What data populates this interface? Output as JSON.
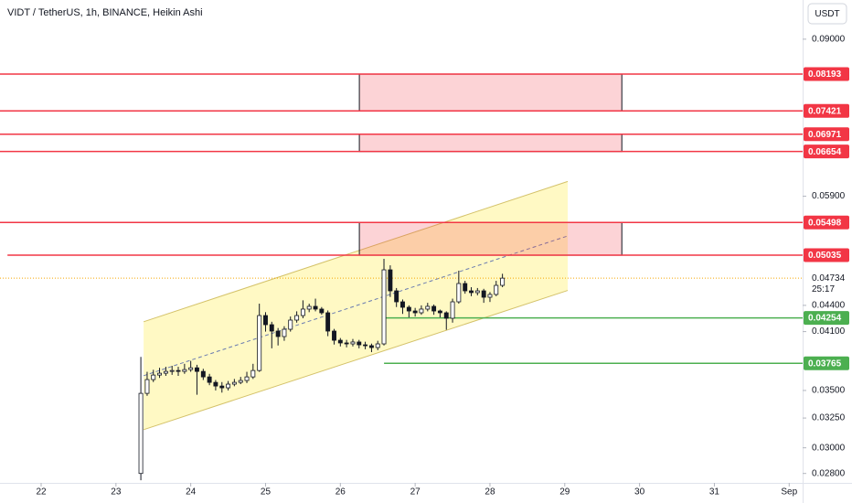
{
  "chart_data": {
    "type": "candlestick",
    "title": "VIDT / TetherUS, 1h, BINANCE, Heikin Ashi",
    "currency": "USDT",
    "countdown": "25:17",
    "log_scale": true,
    "grid": false,
    "up_color": "#ffffff",
    "down_color": "#131722",
    "wick_color": "#131722",
    "xlim": [
      21.45,
      32.18
    ],
    "xticks": [
      22,
      23,
      24,
      25,
      26,
      27,
      28,
      29,
      30,
      31,
      {
        "value": 32,
        "label": "Sep"
      }
    ],
    "ylim": [
      0.0273,
      0.1
    ],
    "yticks": [
      {
        "value": 0.09,
        "label": "0.09000"
      },
      {
        "value": 0.059,
        "label": "0.05900"
      },
      {
        "value": 0.044,
        "label": "0.04400"
      },
      {
        "value": 0.041,
        "label": "0.04100"
      },
      {
        "value": 0.035,
        "label": "0.03500"
      },
      {
        "value": 0.0325,
        "label": "0.03250"
      },
      {
        "value": 0.03,
        "label": "0.03000"
      },
      {
        "value": 0.028,
        "label": "0.02800"
      }
    ],
    "x": [
      23.333,
      23.417,
      23.5,
      23.583,
      23.667,
      23.75,
      23.833,
      23.917,
      24,
      24.083,
      24.167,
      24.25,
      24.333,
      24.417,
      24.5,
      24.583,
      24.667,
      24.75,
      24.833,
      24.917,
      25,
      25.083,
      25.167,
      25.25,
      25.333,
      25.417,
      25.5,
      25.583,
      25.667,
      25.75,
      25.833,
      25.917,
      26,
      26.083,
      26.167,
      26.25,
      26.333,
      26.417,
      26.5,
      26.583,
      26.667,
      26.75,
      26.833,
      26.917,
      27,
      27.083,
      27.167,
      27.25,
      27.333,
      27.417,
      27.5,
      27.583,
      27.667,
      27.75,
      27.833,
      27.917,
      28,
      28.083,
      28.167
    ],
    "open": [
      0.028,
      0.03473,
      0.03604,
      0.03648,
      0.03666,
      0.03684,
      0.03693,
      0.03684,
      0.03702,
      0.0372,
      0.03684,
      0.0363,
      0.03577,
      0.03542,
      0.03525,
      0.0356,
      0.03577,
      0.03595,
      0.0363,
      0.03693,
      0.04281,
      0.04177,
      0.04106,
      0.04046,
      0.04126,
      0.04229,
      0.04281,
      0.04356,
      0.04388,
      0.04356,
      0.04313,
      0.04106,
      0.04006,
      0.03977,
      0.03967,
      0.03987,
      0.03957,
      0.03948,
      0.03928,
      0.03967,
      0.04841,
      0.04575,
      0.04442,
      0.04377,
      0.04334,
      0.04313,
      0.04356,
      0.04388,
      0.04334,
      0.04313,
      0.0425,
      0.04442,
      0.04666,
      0.04575,
      0.04553,
      0.04575,
      0.04497,
      0.04531,
      0.04643
    ],
    "high": [
      0.0383,
      0.0368,
      0.037,
      0.0372,
      0.0373,
      0.0374,
      0.0373,
      0.0376,
      0.0379,
      0.0375,
      0.0371,
      0.0366,
      0.036,
      0.0358,
      0.0359,
      0.0361,
      0.0363,
      0.0368,
      0.0376,
      0.0442,
      0.0432,
      0.0421,
      0.0414,
      0.0416,
      0.0427,
      0.0433,
      0.0446,
      0.0442,
      0.0448,
      0.0438,
      0.0434,
      0.0413,
      0.0403,
      0.0401,
      0.0402,
      0.0401,
      0.0399,
      0.0397,
      0.04,
      0.04986,
      0.049,
      0.0461,
      0.0447,
      0.044,
      0.0437,
      0.044,
      0.0443,
      0.0441,
      0.0435,
      0.0433,
      0.0448,
      0.0483,
      0.047,
      0.0462,
      0.0461,
      0.046,
      0.0456,
      0.047,
      0.0479
    ],
    "low": [
      0.02749,
      0.0345,
      0.0358,
      0.0362,
      0.0364,
      0.0365,
      0.0364,
      0.0366,
      0.0368,
      0.0346,
      0.036,
      0.0355,
      0.035,
      0.0348,
      0.035,
      0.0354,
      0.0356,
      0.0357,
      0.0361,
      0.0368,
      0.041,
      0.0392,
      0.0395,
      0.04,
      0.041,
      0.042,
      0.0425,
      0.0432,
      0.0433,
      0.0429,
      0.0405,
      0.0396,
      0.0394,
      0.0393,
      0.0394,
      0.0392,
      0.0391,
      0.0388,
      0.039,
      0.0395,
      0.045,
      0.0438,
      0.043,
      0.0426,
      0.0427,
      0.0429,
      0.0433,
      0.0429,
      0.0426,
      0.0412,
      0.042,
      0.0442,
      0.0454,
      0.0451,
      0.0452,
      0.0443,
      0.0444,
      0.0451,
      0.0462
    ],
    "close": [
      0.03473,
      0.03604,
      0.03648,
      0.03666,
      0.03684,
      0.03693,
      0.03684,
      0.03702,
      0.0372,
      0.03684,
      0.0363,
      0.03577,
      0.03542,
      0.03525,
      0.0356,
      0.03577,
      0.03595,
      0.0363,
      0.03693,
      0.04281,
      0.04177,
      0.04106,
      0.04046,
      0.04126,
      0.04229,
      0.04281,
      0.04356,
      0.04388,
      0.04356,
      0.04313,
      0.04106,
      0.04006,
      0.03977,
      0.03967,
      0.03987,
      0.03957,
      0.03948,
      0.03928,
      0.03967,
      0.04841,
      0.04575,
      0.04442,
      0.04377,
      0.04334,
      0.04313,
      0.04356,
      0.04388,
      0.04334,
      0.04313,
      0.0425,
      0.04442,
      0.04666,
      0.04575,
      0.04553,
      0.04575,
      0.04497,
      0.04531,
      0.04643,
      0.04734
    ],
    "last_price": 0.04734,
    "levels": [
      {
        "price": 0.08193,
        "color": "#f23645"
      },
      {
        "price": 0.07421,
        "color": "#f23645"
      },
      {
        "price": 0.06971,
        "color": "#f23645"
      },
      {
        "price": 0.06654,
        "color": "#f23645"
      },
      {
        "price": 0.05498,
        "color": "#f23645"
      },
      {
        "price": 0.05035,
        "color": "#f23645",
        "start": 21.55
      },
      {
        "price": 0.04254,
        "color": "#4caf50",
        "start": 26.584
      },
      {
        "price": 0.03765,
        "color": "#4caf50",
        "start": 26.584
      }
    ],
    "zones": [
      {
        "start": 26.254,
        "end": 29.763,
        "top": 0.08193,
        "bottom": 0.07421
      },
      {
        "start": 26.254,
        "end": 29.763,
        "top": 0.06971,
        "bottom": 0.06654
      },
      {
        "start": 26.254,
        "end": 29.763,
        "top": 0.05498,
        "bottom": 0.05035
      }
    ],
    "channel": {
      "start": 23.37,
      "end": 29.04,
      "upper": [
        0.0421,
        0.0614
      ],
      "lower": [
        0.0315,
        0.0458
      ]
    }
  }
}
